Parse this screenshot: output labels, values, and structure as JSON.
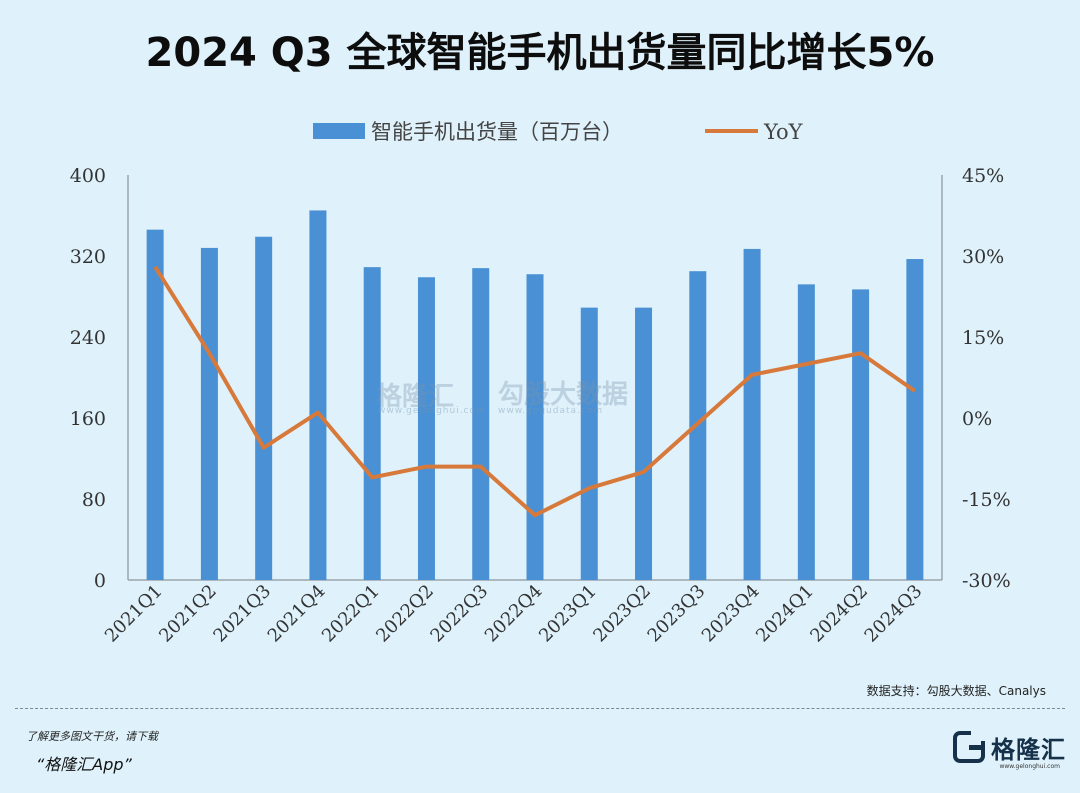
{
  "title": "2024 Q3 全球智能手机出货量同比增长5%",
  "chart_data": {
    "type": "bar+line",
    "categories": [
      "2021Q1",
      "2021Q2",
      "2021Q3",
      "2021Q4",
      "2022Q1",
      "2022Q2",
      "2022Q3",
      "2022Q4",
      "2023Q1",
      "2023Q2",
      "2023Q3",
      "2023Q4",
      "2024Q1",
      "2024Q2",
      "2024Q3"
    ],
    "series": [
      {
        "name": "智能手机出货量（百万台）",
        "type": "bar",
        "axis": "left",
        "color": "#4a90d4",
        "values": [
          346,
          328,
          339,
          365,
          309,
          299,
          308,
          302,
          269,
          269,
          305,
          327,
          292,
          287,
          317
        ]
      },
      {
        "name": "YoY",
        "type": "line",
        "axis": "right",
        "color": "#d7793b",
        "values": [
          28,
          12,
          -5.5,
          1,
          -11,
          -9,
          -9,
          -18,
          -13,
          -10,
          -1,
          8,
          10,
          12,
          5
        ]
      }
    ],
    "left_axis": {
      "ylim": [
        0,
        400
      ],
      "ticks": [
        "0",
        "80",
        "160",
        "240",
        "320",
        "400"
      ]
    },
    "right_axis": {
      "ylim": [
        -30,
        45
      ],
      "ticks": [
        "-30%",
        "-15%",
        "0%",
        "15%",
        "30%",
        "45%"
      ]
    },
    "legend_position": "top-center",
    "grid": false
  },
  "watermarks": {
    "left_name": "格隆汇",
    "left_sub": "www.gelonghui.com",
    "right_name": "勾股大数据",
    "right_sub": "www.gogudata.com"
  },
  "source": "数据支持：勾股大数据、Canalys",
  "footer": {
    "line1": "了解更多图文干货，请下载",
    "line2": "“格隆汇App”",
    "brand": "格隆汇",
    "brand_sub": "www.gelonghui.com"
  }
}
